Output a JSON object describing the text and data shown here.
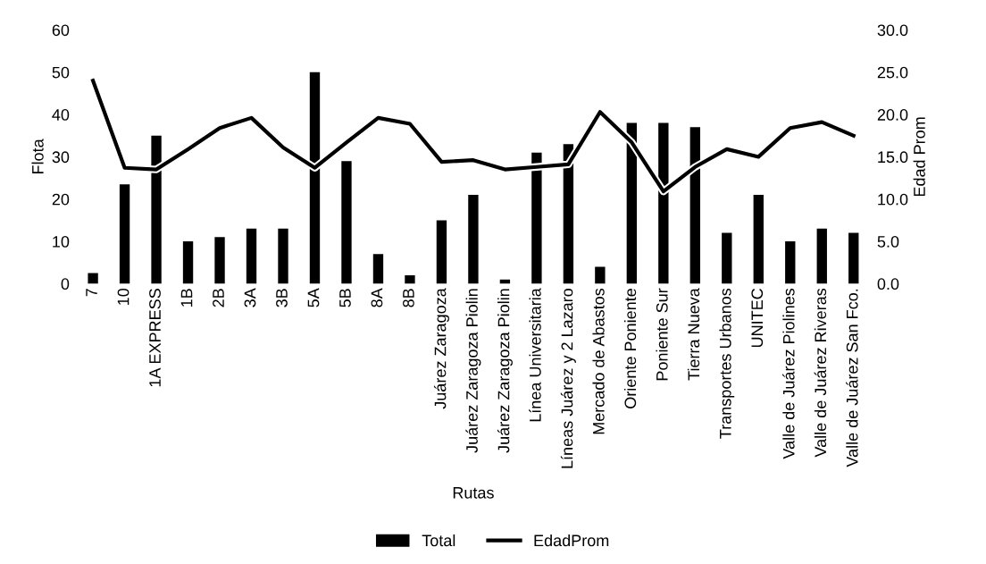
{
  "chart_data": {
    "type": "bar",
    "xlabel": "Rutas",
    "ylabel": "Flota",
    "y2label": "Edad Prom",
    "categories": [
      "7",
      "10",
      "1A EXPRESS",
      "1B",
      "2B",
      "3A",
      "3B",
      "5A",
      "5B",
      "8A",
      "8B",
      "Juárez Zaragoza",
      "Juárez Zaragoza Piolin",
      "Juárez Zaragoza Piolin",
      "Línea Universitaria",
      "Líneas Juárez y 2 Lazaro",
      "Mercado de Abastos",
      "Oriente Poniente",
      "Poniente Sur",
      "Tierra Nueva",
      "Transportes Urbanos",
      "UNITEC",
      "Valle de Juárez Piolines",
      "Valle de Juárez Riveras",
      "Valle de Juárez San Fco."
    ],
    "series": [
      {
        "name": "Total",
        "color": "#000000",
        "values": [
          2.5,
          23.5,
          35,
          10,
          11,
          13,
          13,
          50,
          29,
          7,
          2,
          15,
          21,
          1,
          31,
          33,
          4,
          38,
          38,
          37,
          12,
          21,
          10,
          13,
          12
        ]
      },
      {
        "name": "EdadProm",
        "type": "line",
        "axis": "y2",
        "color": "#000000",
        "values": [
          24.0,
          13.7,
          13.5,
          15.9,
          18.4,
          19.6,
          16.1,
          13.7,
          16.7,
          19.6,
          18.9,
          14.4,
          14.6,
          13.5,
          13.8,
          14.1,
          20.3,
          16.7,
          10.9,
          13.8,
          15.9,
          15.0,
          18.4,
          19.1,
          17.5
        ]
      }
    ],
    "ylim": [
      0,
      60
    ],
    "yticks": [
      0,
      10,
      20,
      30,
      40,
      50,
      60
    ],
    "y2lim": [
      0,
      30
    ],
    "y2ticks": [
      {
        "value": 0,
        "label": "0.0"
      },
      {
        "value": 5,
        "label": "5.0"
      },
      {
        "value": 10,
        "label": "10.0"
      },
      {
        "value": 15,
        "label": "15.0"
      },
      {
        "value": 20,
        "label": "20.0"
      },
      {
        "value": 25,
        "label": "25.0"
      },
      {
        "value": 30,
        "label": "30.0"
      }
    ],
    "legend": "bottom",
    "grid": false
  }
}
